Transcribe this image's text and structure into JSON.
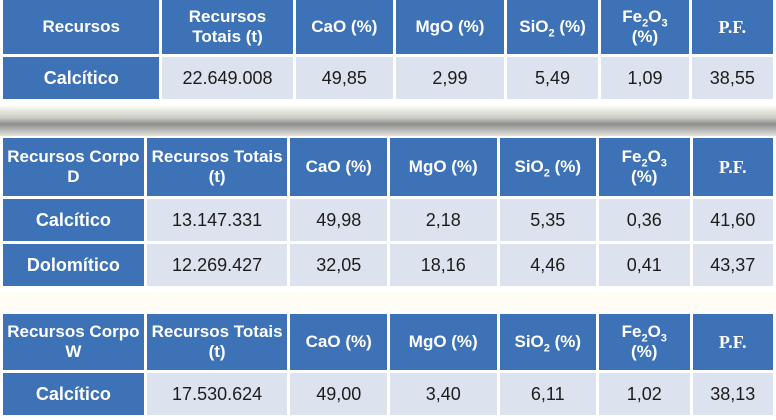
{
  "columns": {
    "recursos_totais": "Recursos Totais (t)",
    "cao": "CaO (%)",
    "mgo": "MgO (%)",
    "sio_a": "SiO",
    "sio_b": "2",
    "sio_c": " (%)",
    "fe_a": "Fe",
    "fe_b": "2",
    "fe_c": "O",
    "fe_d": "3",
    "fe_e": "(%)",
    "pf": "P.F."
  },
  "tables": [
    {
      "title": "Recursos",
      "rows": [
        {
          "label": "Calcítico",
          "totais": "22.649.008",
          "cao": "49,85",
          "mgo": "2,99",
          "sio2": "5,49",
          "fe2o3": "1,09",
          "pf": "38,55"
        }
      ]
    },
    {
      "title": "Recursos Corpo D",
      "rows": [
        {
          "label": "Calcítico",
          "totais": "13.147.331",
          "cao": "49,98",
          "mgo": "2,18",
          "sio2": "5,35",
          "fe2o3": "0,36",
          "pf": "41,60"
        },
        {
          "label": "Dolomítico",
          "totais": "12.269.427",
          "cao": "32,05",
          "mgo": "18,16",
          "sio2": "4,46",
          "fe2o3": "0,41",
          "pf": "43,37"
        }
      ]
    },
    {
      "title": "Recursos Corpo W",
      "rows": [
        {
          "label": "Calcítico",
          "totais": "17.530.624",
          "cao": "49,00",
          "mgo": "3,40",
          "sio2": "6,11",
          "fe2o3": "1,02",
          "pf": "38,13"
        }
      ]
    }
  ]
}
